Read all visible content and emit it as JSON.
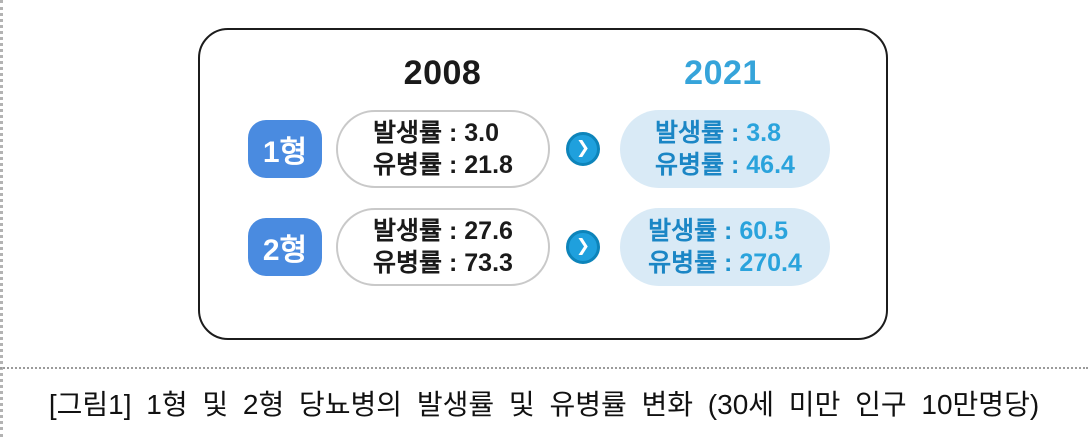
{
  "chart_data": {
    "type": "table",
    "title": "[그림1] 1형 및 2형 당뇨병의 발생률 및 유병률 변화 (30세 미만 인구 10만명당)",
    "categories": [
      "1형",
      "2형"
    ],
    "series": [
      {
        "name": "2008 발생률",
        "values": [
          3.0,
          27.6
        ]
      },
      {
        "name": "2008 유병률",
        "values": [
          21.8,
          73.3
        ]
      },
      {
        "name": "2021 발생률",
        "values": [
          3.8,
          60.5
        ]
      },
      {
        "name": "2021 유병률",
        "values": [
          46.4,
          270.4
        ]
      }
    ],
    "layout_hints": "comparison card: rows are diabetes types, left column year 2008 (white pill boxes), right column year 2021 (light blue pill boxes), arrow circle between columns"
  },
  "figure": {
    "year_left": "2008",
    "year_right": "2021",
    "separator": " : ",
    "arrow_glyph": "❯",
    "rows": [
      {
        "type_label": "1형",
        "y2008": [
          {
            "label": "발생률",
            "value": "3.0"
          },
          {
            "label": "유병률",
            "value": "21.8"
          }
        ],
        "y2021": [
          {
            "label": "발생률",
            "value": "3.8"
          },
          {
            "label": "유병률",
            "value": "46.4"
          }
        ]
      },
      {
        "type_label": "2형",
        "y2008": [
          {
            "label": "발생률",
            "value": "27.6"
          },
          {
            "label": "유병률",
            "value": "73.3"
          }
        ],
        "y2021": [
          {
            "label": "발생률",
            "value": "60.5"
          },
          {
            "label": "유병률",
            "value": "270.4"
          }
        ]
      }
    ]
  },
  "caption": "[그림1] 1형 및 2형 당뇨병의 발생률 및 유병률 변화 (30세 미만 인구 10만명당)",
  "colors": {
    "badge_blue": "#4a8be0",
    "year_2021_blue": "#36a4da",
    "arrow_circle_fill": "#1fa0dd",
    "arrow_circle_ring": "#0d84ba",
    "box_2021_bg": "#d9eaf6",
    "box_2021_label": "#1b86c5",
    "box_2021_value": "#2aa3dc",
    "text_black": "#1a1a1a",
    "white_box_border": "#c9c9c9"
  }
}
